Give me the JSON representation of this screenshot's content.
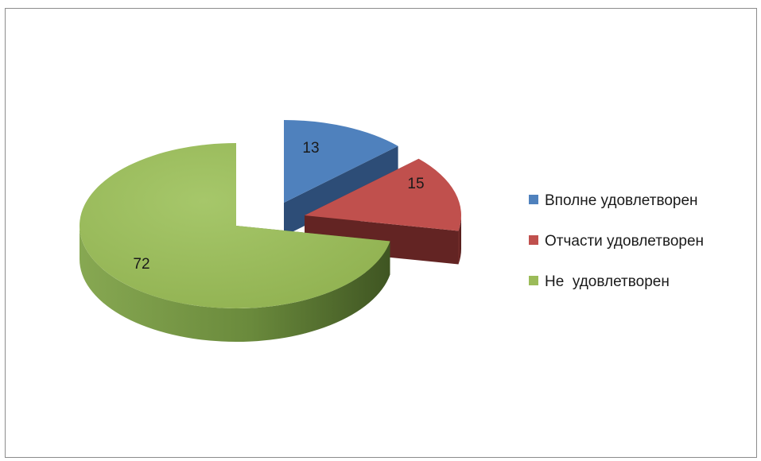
{
  "chart_data": {
    "type": "pie",
    "title": "",
    "categories": [
      "Вполне удовлетворен",
      "Отчасти удовлетворен",
      "Не  удовлетворен"
    ],
    "values": [
      13,
      15,
      72
    ],
    "data_labels": [
      "13",
      "15",
      "72"
    ],
    "colors": [
      "#4f81bd",
      "#c0504d",
      "#9bbb59"
    ],
    "dark_colors": [
      "#2d4d77",
      "#632423",
      "#5a7430"
    ],
    "exploded": true,
    "three_d": true,
    "legend": {
      "placement": "right",
      "entries": [
        "Вполне удовлетворен",
        "Отчасти удовлетворен",
        "Не  удовлетворен"
      ]
    }
  }
}
